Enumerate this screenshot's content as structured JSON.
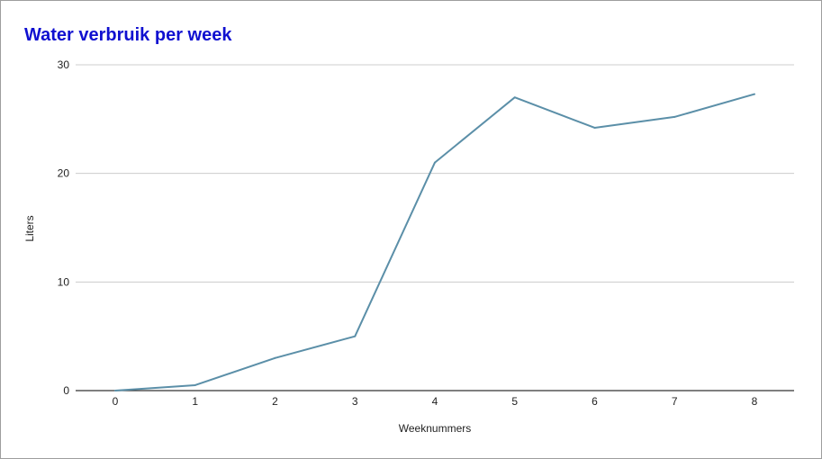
{
  "colors": {
    "title": "#1010d0",
    "series": "#5b8fa8",
    "gridline": "#cccccc",
    "baseline": "#333333"
  },
  "chart_data": {
    "type": "line",
    "title": "Water verbruik per week",
    "xlabel": "Weeknummers",
    "ylabel": "Liters",
    "x": [
      0,
      1,
      2,
      3,
      4,
      5,
      6,
      7,
      8
    ],
    "x_tick_labels": [
      "0",
      "1",
      "2",
      "3",
      "4",
      "5",
      "6",
      "7",
      "8"
    ],
    "y_tick_labels": [
      "0",
      "10",
      "20",
      "30"
    ],
    "y_ticks": [
      0,
      10,
      20,
      30
    ],
    "ylim": [
      0,
      30
    ],
    "grid": true,
    "legend": "none",
    "series": [
      {
        "values": [
          0,
          0.5,
          3,
          5,
          21,
          27,
          24.2,
          25.2,
          27.3
        ]
      }
    ]
  }
}
